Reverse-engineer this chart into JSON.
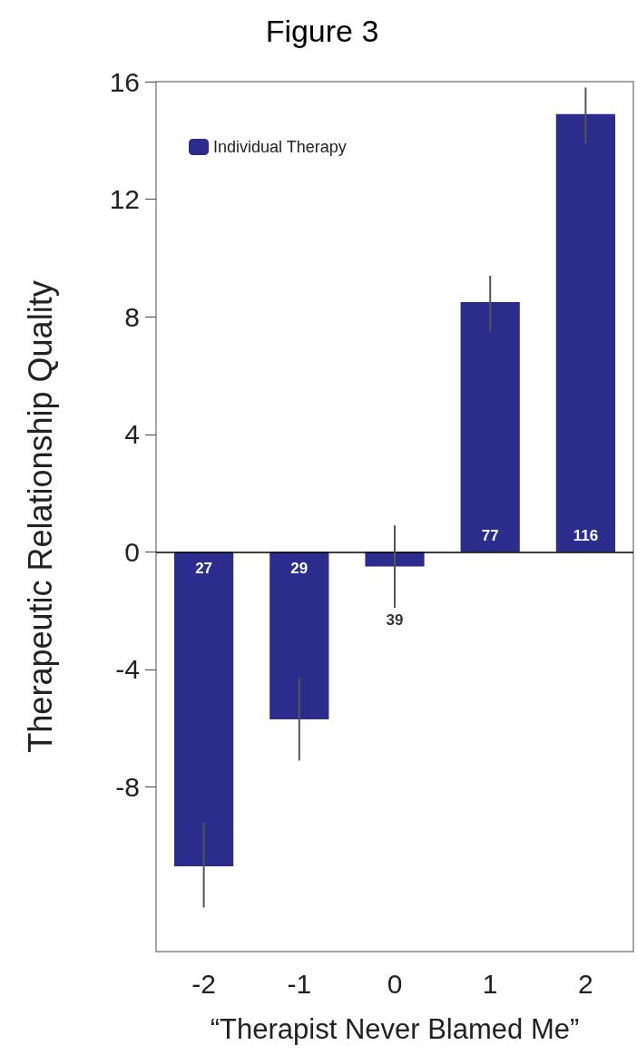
{
  "chart_data": {
    "type": "bar",
    "title": "Figure 3",
    "xlabel": "“Therapist Never Blamed Me”",
    "ylabel": "Therapeutic Relationship Quality",
    "categories": [
      "-2",
      "-1",
      "0",
      "1",
      "2"
    ],
    "series": [
      {
        "name": "Individual Therapy",
        "color": "#2b2c8c",
        "values": [
          -10.7,
          -5.7,
          -0.5,
          8.5,
          14.9
        ],
        "errors": [
          [
            -12.1,
            -9.2
          ],
          [
            -7.1,
            -4.3
          ],
          [
            -1.9,
            0.9
          ],
          [
            7.5,
            9.4
          ],
          [
            13.9,
            15.8
          ]
        ]
      }
    ],
    "annotations": [
      "27",
      "29",
      "39",
      "77",
      "116"
    ],
    "ref_lines": [
      {
        "axis": "y",
        "value": 0,
        "color": "#000000"
      }
    ],
    "ylim": [
      -13.6,
      16
    ],
    "yticks": [
      -8,
      -4,
      0,
      4,
      8,
      12,
      16
    ],
    "grid": false,
    "legend": "top left"
  }
}
